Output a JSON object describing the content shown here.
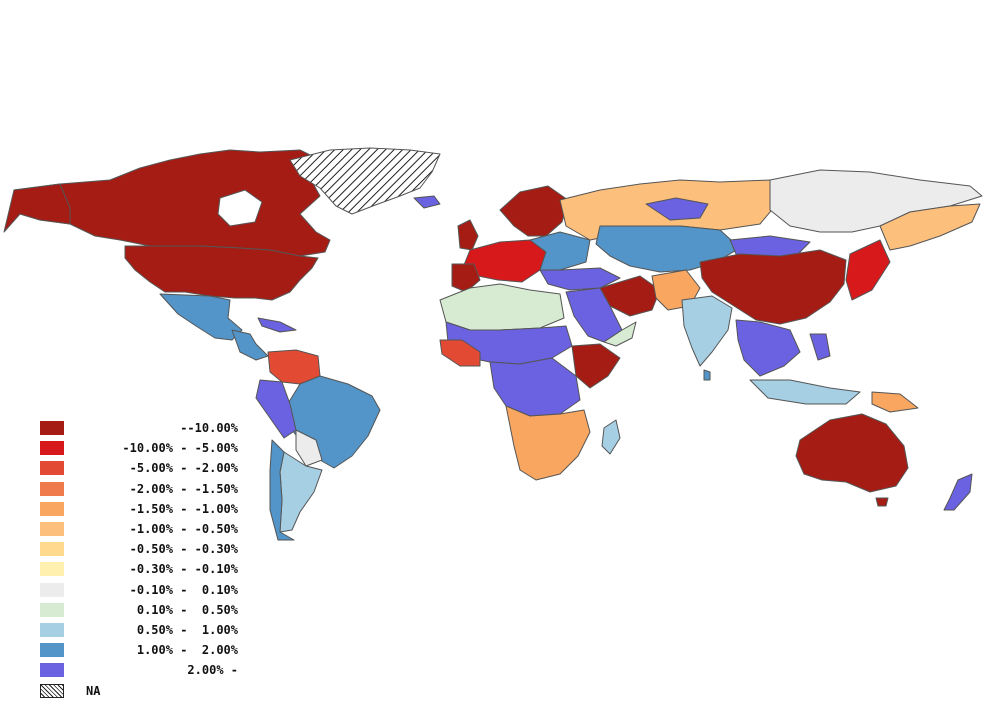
{
  "palette": {
    "r1": "#a51c14",
    "r2": "#d7191c",
    "r3": "#e34a33",
    "r4": "#ef7b4c",
    "r5": "#f8a660",
    "r6": "#fcc07c",
    "r7": "#fed98e",
    "r8": "#fff0b0",
    "n0": "#ececec",
    "b1": "#d7ebd2",
    "b2": "#a6cfe4",
    "b3": "#5395c8",
    "b4": "#6a62e0"
  },
  "legend": {
    "items": [
      {
        "label": "--10.00%",
        "color": "#a51c14"
      },
      {
        "label": "-10.00% - -5.00%",
        "color": "#d7191c"
      },
      {
        "label": "-5.00% - -2.00%",
        "color": "#e34a33"
      },
      {
        "label": "-2.00% - -1.50%",
        "color": "#ef7b4c"
      },
      {
        "label": "-1.50% - -1.00%",
        "color": "#f8a660"
      },
      {
        "label": "-1.00% - -0.50%",
        "color": "#fcc07c"
      },
      {
        "label": "-0.50% - -0.30%",
        "color": "#fed98e"
      },
      {
        "label": "-0.30% - -0.10%",
        "color": "#fff0b0"
      },
      {
        "label": "-0.10% -  0.10%",
        "color": "#ececec"
      },
      {
        "label": "0.10% -  0.50%",
        "color": "#d7ebd2"
      },
      {
        "label": "0.50% -  1.00%",
        "color": "#a6cfe4"
      },
      {
        "label": "1.00% -  2.00%",
        "color": "#5395c8"
      },
      {
        "label": "2.00% -",
        "color": "#6a62e0"
      }
    ],
    "na": {
      "label": "NA",
      "pattern": "diagonal-hatch"
    }
  }
}
